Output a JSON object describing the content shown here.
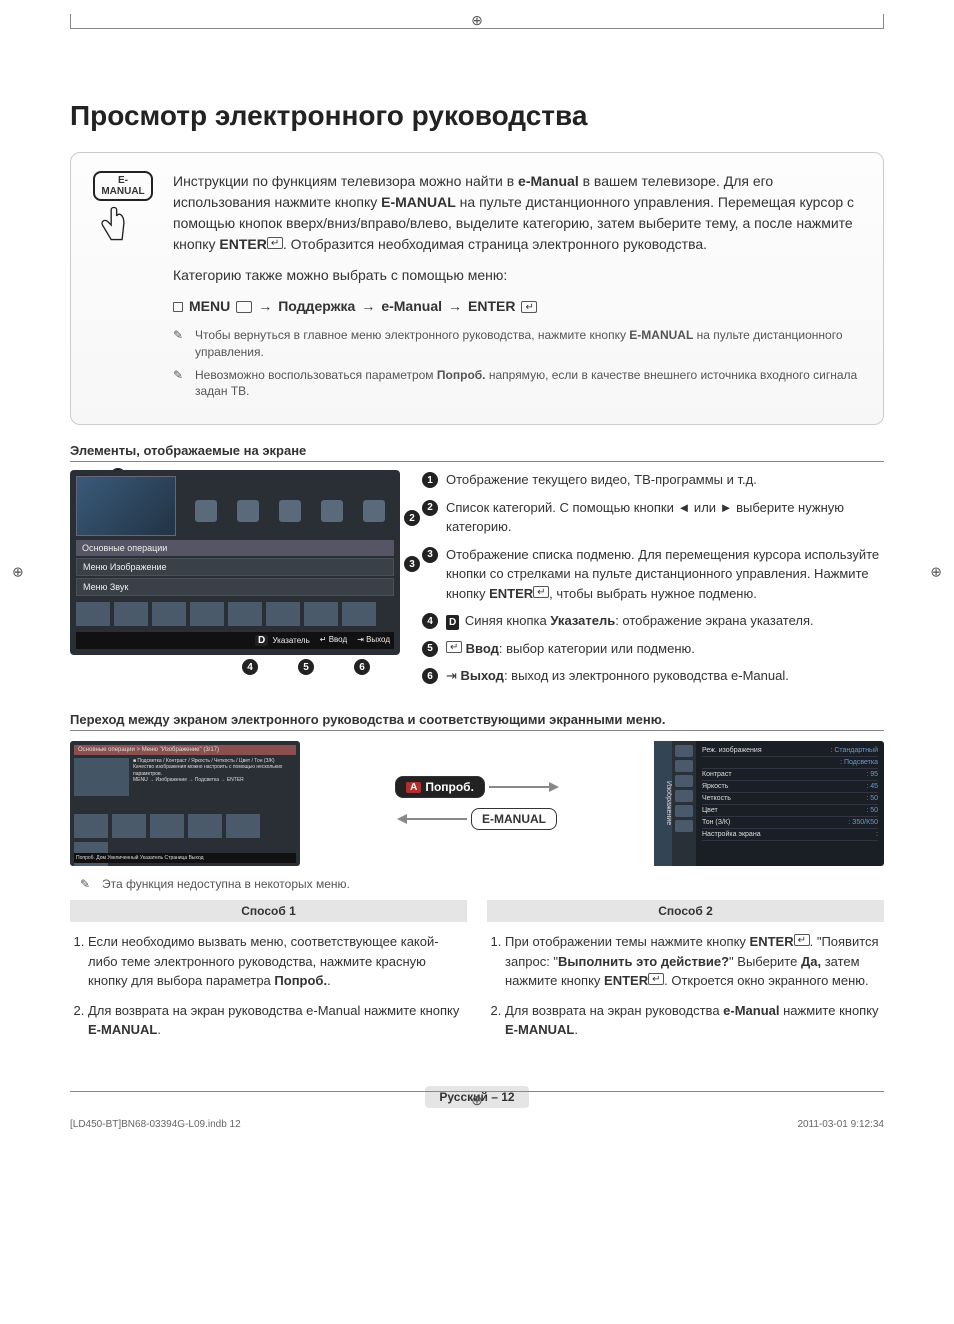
{
  "page_title": "Просмотр электронного руководства",
  "badge_label": "E-MANUAL",
  "intro": {
    "p1_a": "Инструкции по функциям телевизора можно найти в ",
    "p1_b": "e-Manual",
    "p1_c": " в вашем телевизоре. Для его использования нажмите кнопку ",
    "p1_d": "E-MANUAL",
    "p1_e": " на пульте дистанционного управления. Перемещая курсор с помощью кнопок вверх/вниз/вправо/влево, выделите категорию, затем выберите тему, а после нажмите кнопку ",
    "p1_f": "ENTER",
    "p1_g": ". Отобразится необходимая страница электронного руководства.",
    "p2": "Категорию также можно выбрать с помощью меню:"
  },
  "menu_path": {
    "menu": "MENU",
    "support": "Поддержка",
    "emanual": "e-Manual",
    "enter": "ENTER",
    "arrow": "→"
  },
  "notes": {
    "n1_a": "Чтобы вернуться в главное меню электронного руководства, нажмите кнопку ",
    "n1_b": "E-MANUAL",
    "n1_c": " на пульте дистанционного управления.",
    "n2_a": "Невозможно воспользоваться параметром ",
    "n2_b": "Попроб.",
    "n2_c": " напрямую, если в качестве внешнего источника входного сигнала задан ТВ."
  },
  "section_elements": "Элементы, отображаемые на экране",
  "tv": {
    "cat_header": "Основные операции",
    "menu1": "Меню Изображение",
    "menu2": "Меню Звук",
    "footer_index": "Указатель",
    "footer_enter": "Ввод",
    "footer_exit": "Выход"
  },
  "legend": {
    "i1": "Отображение текущего видео, ТВ-программы и т.д.",
    "i2": "Список категорий. С помощью кнопки ◄ или ► выберите нужную категорию.",
    "i3_a": "Отображение списка подменю. Для перемещения курсора используйте кнопки со стрелками на пульте дистанционного управления. Нажмите кнопку ",
    "i3_b": "ENTER",
    "i3_c": ", чтобы выбрать нужное подменю.",
    "i4_a": "Синяя кнопка ",
    "i4_b": "Указатель",
    "i4_c": ": отображение экрана указателя.",
    "i5_a": "Ввод",
    "i5_b": ": выбор категории или подменю.",
    "i6_a": "Выход",
    "i6_b": ": выход из электронного руководства e-Manual."
  },
  "section_transition": "Переход между экраном электронного руководства и соответствующими экранными меню.",
  "mini_left": {
    "header": "Основные операции > Меню \"Изображение\" (3/17)",
    "bullet1": "Подсветка / Контраст / Яркость / Четкость / Цвет / Тон (З/К)",
    "line1": "Качество изображения можно настроить с помощью нескольких параметров.",
    "line2": "MENU → Изображение → Подсветка → ENTER",
    "footer": "Попроб.  Дом  Увеличенный  Указатель  Страница  Выход"
  },
  "pills": {
    "try": "Попроб.",
    "emanual": "E-MANUAL"
  },
  "menu_screen": {
    "side": "Изображение",
    "rows": [
      {
        "k": "Реж. изображения",
        "v": "Стандартный"
      },
      {
        "k": "",
        "v": "Подсветка"
      },
      {
        "k": "Контраст",
        "v": "95"
      },
      {
        "k": "Яркость",
        "v": "45"
      },
      {
        "k": "Четкость",
        "v": "50"
      },
      {
        "k": "Цвет",
        "v": "50"
      },
      {
        "k": "Тон (З/К)",
        "v": "З50/К50"
      },
      {
        "k": "Настройка экрана",
        "v": ""
      }
    ]
  },
  "note3": "Эта функция недоступна в некоторых меню.",
  "method_labels": {
    "m1": "Способ 1",
    "m2": "Способ 2"
  },
  "method1": {
    "s1_a": "Если необходимо вызвать меню, соответствующее какой-либо теме электронного руководства, нажмите красную кнопку для выбора параметра ",
    "s1_b": "Попроб.",
    "s1_c": ".",
    "s2_a": "Для возврата на экран руководства e-Manual нажмите кнопку ",
    "s2_b": "E-MANUAL",
    "s2_c": "."
  },
  "method2": {
    "s1_a": "При отображении темы нажмите кнопку ",
    "s1_b": "ENTER",
    "s1_c": ". \"Появится запрос: \"",
    "s1_d": "Выполнить это действие?",
    "s1_e": "\" Выберите ",
    "s1_f": "Да,",
    "s1_g": " затем нажмите кнопку ",
    "s1_h": "ENTER",
    "s1_i": ". Откроется окно экранного меню.",
    "s2_a": "Для возврата на экран руководства ",
    "s2_b": "e-Manual",
    "s2_c": " нажмите кнопку ",
    "s2_d": "E-MANUAL",
    "s2_e": "."
  },
  "page_footer": "Русский – 12",
  "print": {
    "left": "[LD450-BT]BN68-03394G-L09.indb   12",
    "right": "2011-03-01   9:12:34"
  },
  "colors": {
    "tv_bg": "#2a2f35",
    "accent_red": "#b03030",
    "accent_blue": "#2a6ab0"
  }
}
